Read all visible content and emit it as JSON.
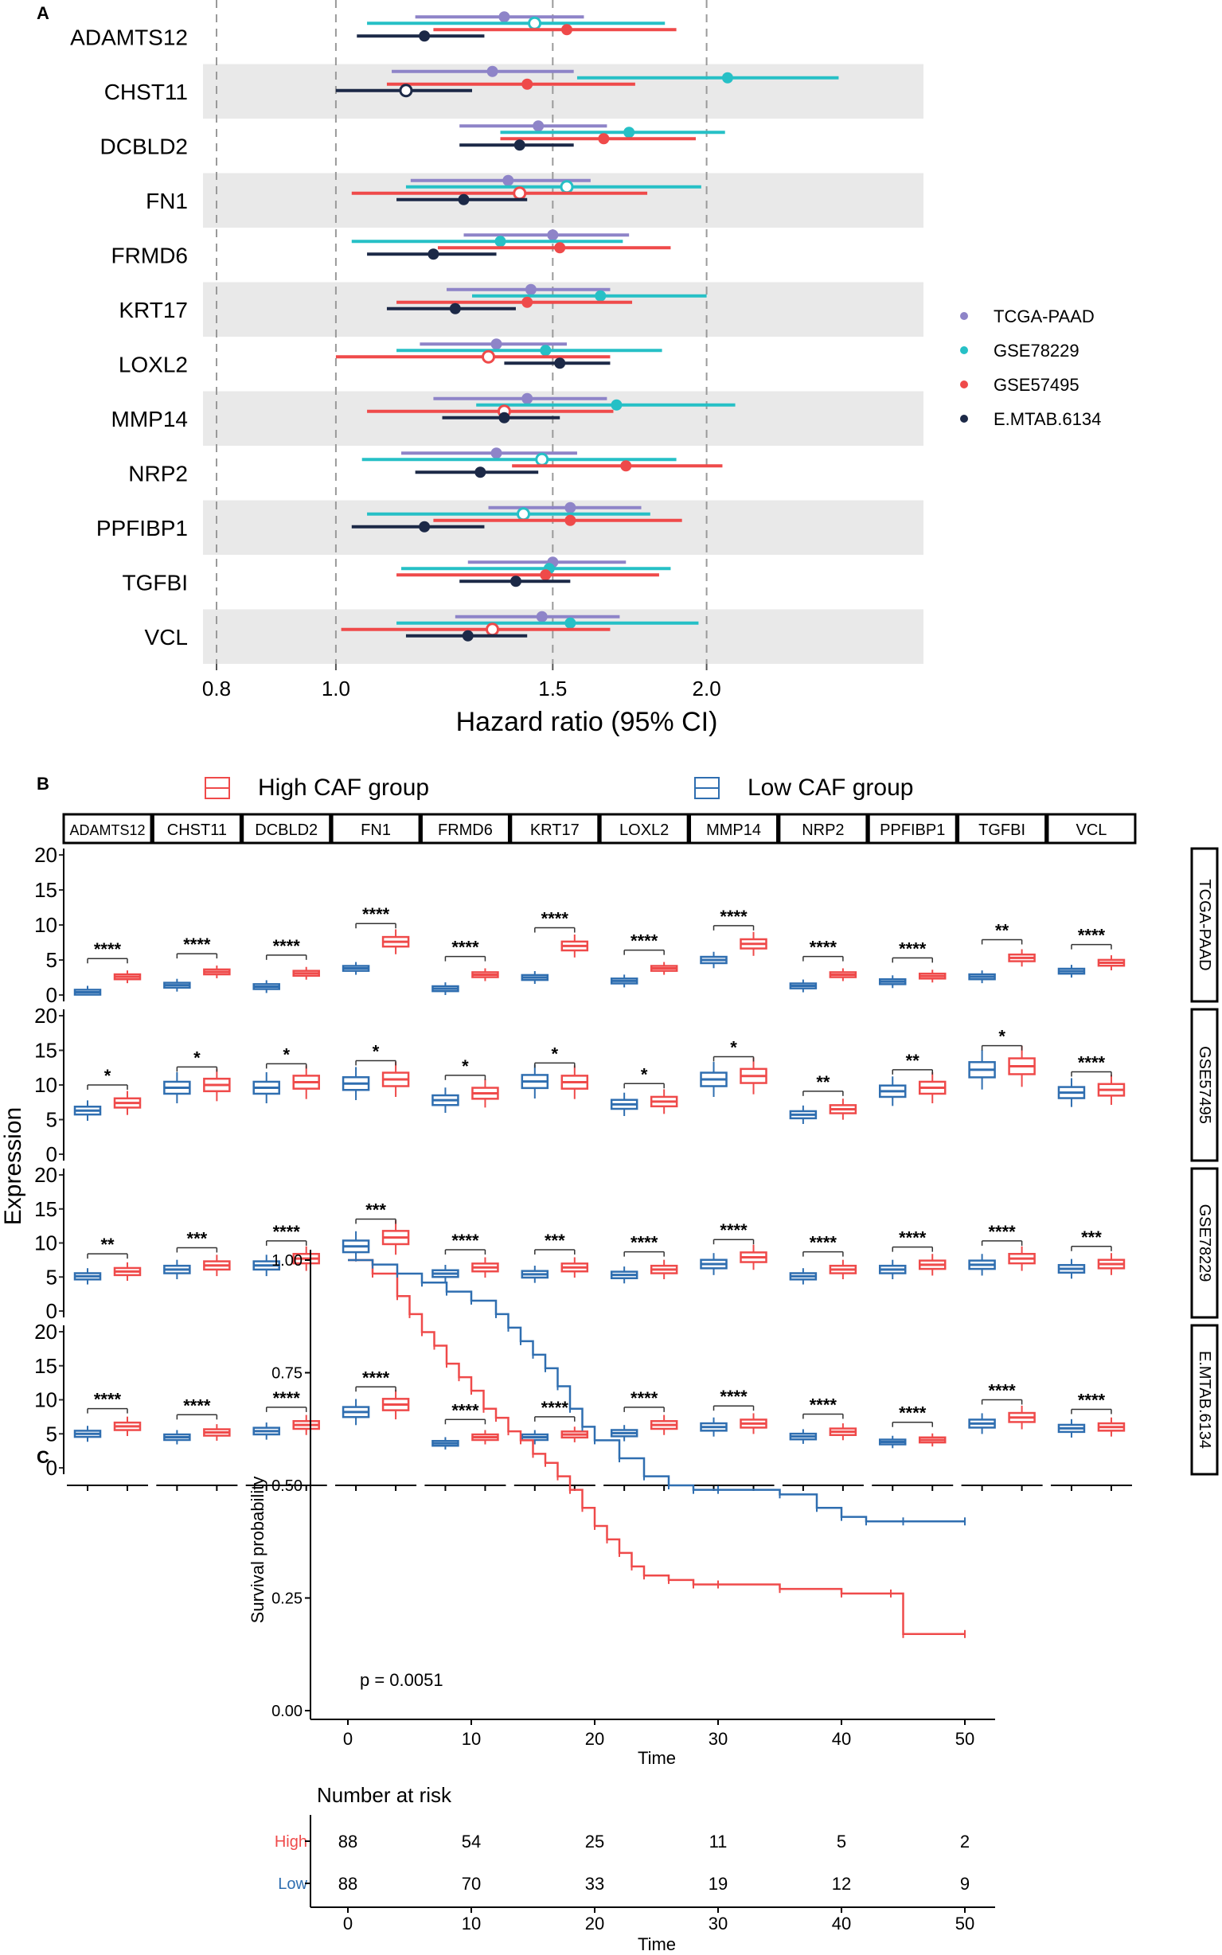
{
  "panels": {
    "a": "A",
    "b": "B",
    "c": "C"
  },
  "chart_data": [
    {
      "type": "forest",
      "panel": "A",
      "xlabel": "Hazard ratio (95% CI)",
      "xticks": [
        "0.8",
        "1.0",
        "1.5",
        "2.0"
      ],
      "xlim_log": [
        0.78,
        3.0
      ],
      "reference_lines": [
        0.8,
        1.0,
        1.5,
        2.0
      ],
      "genes": [
        "ADAMTS12",
        "CHST11",
        "DCBLD2",
        "FN1",
        "FRMD6",
        "KRT17",
        "LOXL2",
        "MMP14",
        "NRP2",
        "PPFIBP1",
        "TGFBI",
        "VCL"
      ],
      "series": [
        {
          "name": "TCGA-PAAD",
          "color": "#8e84c8",
          "hollow": [
            false,
            false,
            false,
            false,
            false,
            false,
            false,
            false,
            false,
            false,
            false,
            false
          ],
          "est": [
            1.37,
            1.34,
            1.46,
            1.38,
            1.5,
            1.44,
            1.35,
            1.43,
            1.35,
            1.55,
            1.5,
            1.47
          ],
          "lo": [
            1.16,
            1.11,
            1.26,
            1.15,
            1.27,
            1.23,
            1.17,
            1.2,
            1.13,
            1.33,
            1.28,
            1.25
          ],
          "hi": [
            1.59,
            1.56,
            1.66,
            1.61,
            1.73,
            1.67,
            1.54,
            1.66,
            1.57,
            1.77,
            1.72,
            1.7
          ]
        },
        {
          "name": "GSE78229",
          "color": "#26c0c6",
          "hollow": [
            true,
            false,
            false,
            true,
            false,
            false,
            false,
            false,
            true,
            true,
            false,
            false
          ],
          "est": [
            1.45,
            2.08,
            1.73,
            1.54,
            1.36,
            1.64,
            1.48,
            1.69,
            1.47,
            1.42,
            1.49,
            1.55
          ],
          "lo": [
            1.06,
            1.57,
            1.36,
            1.14,
            1.03,
            1.29,
            1.12,
            1.3,
            1.05,
            1.06,
            1.13,
            1.12
          ],
          "hi": [
            1.85,
            2.56,
            2.07,
            1.98,
            1.71,
            2.0,
            1.84,
            2.11,
            1.89,
            1.8,
            1.87,
            1.97
          ]
        },
        {
          "name": "GSE57495",
          "color": "#ef4a4a",
          "hollow": [
            false,
            false,
            false,
            true,
            false,
            false,
            true,
            true,
            false,
            false,
            false,
            true
          ],
          "est": [
            1.54,
            1.43,
            1.65,
            1.41,
            1.52,
            1.43,
            1.33,
            1.37,
            1.72,
            1.55,
            1.48,
            1.34
          ],
          "lo": [
            1.2,
            1.1,
            1.36,
            1.03,
            1.21,
            1.12,
            1.0,
            1.06,
            1.39,
            1.2,
            1.12,
            1.01
          ],
          "hi": [
            1.89,
            1.75,
            1.96,
            1.79,
            1.87,
            1.74,
            1.67,
            1.68,
            2.06,
            1.91,
            1.83,
            1.67
          ]
        },
        {
          "name": "E.MTAB.6134",
          "color": "#1c2947",
          "hollow": [
            false,
            true,
            false,
            false,
            false,
            false,
            false,
            false,
            false,
            false,
            false,
            false
          ],
          "est": [
            1.18,
            1.14,
            1.41,
            1.27,
            1.2,
            1.25,
            1.52,
            1.37,
            1.31,
            1.18,
            1.4,
            1.28
          ],
          "lo": [
            1.04,
            1.0,
            1.26,
            1.12,
            1.06,
            1.1,
            1.37,
            1.22,
            1.16,
            1.03,
            1.26,
            1.14
          ],
          "hi": [
            1.32,
            1.29,
            1.56,
            1.43,
            1.35,
            1.4,
            1.67,
            1.52,
            1.46,
            1.32,
            1.55,
            1.43
          ]
        }
      ]
    },
    {
      "type": "boxplot",
      "panel": "B",
      "ylabel": "Expression",
      "ylim": [
        0,
        20
      ],
      "yticks": [
        "0",
        "5",
        "10",
        "15",
        "20"
      ],
      "legend": [
        "High CAF group",
        "Low CAF group"
      ],
      "legend_colors": [
        "#ef4a4a",
        "#2f6eb0"
      ],
      "genes": [
        "ADAMTS12",
        "CHST11",
        "DCBLD2",
        "FN1",
        "FRMD6",
        "KRT17",
        "LOXL2",
        "MMP14",
        "NRP2",
        "PPFIBP1",
        "TGFBI",
        "VCL"
      ],
      "datasets": [
        "TCGA-PAAD",
        "GSE57495",
        "GSE78229",
        "E.MTAB.6134"
      ],
      "low_median": [
        [
          0.4,
          1.4,
          1.2,
          3.8,
          0.9,
          2.5,
          2.0,
          5.0,
          1.3,
          1.9,
          2.6,
          3.4
        ],
        [
          6.3,
          9.6,
          9.6,
          10.2,
          7.8,
          10.5,
          7.2,
          10.8,
          5.7,
          9.1,
          12.2,
          8.9
        ],
        [
          5.1,
          6.1,
          6.7,
          9.5,
          5.5,
          5.4,
          5.3,
          6.9,
          5.1,
          6.1,
          6.8,
          6.2
        ],
        [
          5.0,
          4.5,
          5.4,
          8.2,
          3.6,
          4.5,
          5.1,
          6.0,
          4.6,
          3.8,
          6.5,
          5.8
        ]
      ],
      "high_median": [
        [
          2.6,
          3.3,
          3.1,
          7.6,
          2.9,
          7.0,
          3.8,
          7.3,
          2.9,
          2.7,
          5.3,
          4.6
        ],
        [
          7.4,
          10.0,
          10.4,
          10.8,
          8.8,
          10.4,
          7.6,
          11.3,
          6.5,
          9.6,
          12.7,
          9.3
        ],
        [
          5.8,
          6.7,
          7.7,
          10.8,
          6.4,
          6.4,
          6.1,
          7.9,
          6.1,
          6.8,
          7.7,
          6.9
        ],
        [
          6.1,
          5.2,
          6.3,
          9.3,
          4.5,
          4.9,
          6.3,
          6.5,
          5.3,
          4.1,
          7.4,
          6.0
        ]
      ],
      "significance": [
        [
          "****",
          "****",
          "****",
          "****",
          "****",
          "****",
          "****",
          "****",
          "****",
          "****",
          "**",
          "****"
        ],
        [
          "*",
          "*",
          "*",
          "*",
          "*",
          "*",
          "*",
          "*",
          "**",
          "**",
          "*",
          "****"
        ],
        [
          "**",
          "***",
          "****",
          "***",
          "****",
          "***",
          "****",
          "****",
          "****",
          "****",
          "****",
          "***"
        ],
        [
          "****",
          "****",
          "****",
          "****",
          "****",
          "****",
          "****",
          "****",
          "****",
          "****",
          "****",
          "****"
        ]
      ]
    },
    {
      "type": "line",
      "panel": "C",
      "subtype": "kaplan-meier",
      "xlabel": "Time",
      "ylabel": "Survival probability",
      "xticks": [
        "0",
        "10",
        "20",
        "30",
        "40",
        "50"
      ],
      "yticks": [
        "0.00",
        "0.25",
        "0.50",
        "0.75",
        "1.00"
      ],
      "xlim": [
        0,
        50
      ],
      "ylim": [
        0,
        1
      ],
      "pvalue": "p = 0.0051",
      "series": [
        {
          "name": "High",
          "color": "#ef4a4a",
          "x": [
            0,
            2,
            4,
            5,
            6,
            7,
            8,
            9,
            10,
            11,
            12,
            13,
            14,
            15,
            16,
            17,
            18,
            19,
            20,
            21,
            22,
            23,
            24,
            26,
            28,
            30,
            35,
            40,
            44,
            45,
            50
          ],
          "y": [
            1.0,
            0.97,
            0.92,
            0.88,
            0.84,
            0.81,
            0.77,
            0.74,
            0.71,
            0.67,
            0.65,
            0.62,
            0.6,
            0.57,
            0.55,
            0.52,
            0.49,
            0.45,
            0.41,
            0.38,
            0.35,
            0.32,
            0.3,
            0.29,
            0.28,
            0.28,
            0.27,
            0.26,
            0.26,
            0.17,
            0.17
          ]
        },
        {
          "name": "Low",
          "color": "#2f6eb0",
          "x": [
            0,
            2,
            4,
            6,
            8,
            10,
            12,
            13,
            14,
            15,
            16,
            17,
            18,
            19,
            20,
            22,
            24,
            26,
            28,
            30,
            35,
            38,
            40,
            42,
            45,
            50
          ],
          "y": [
            1.0,
            0.99,
            0.97,
            0.95,
            0.93,
            0.91,
            0.88,
            0.85,
            0.82,
            0.79,
            0.76,
            0.72,
            0.67,
            0.63,
            0.6,
            0.56,
            0.52,
            0.5,
            0.49,
            0.49,
            0.48,
            0.45,
            0.43,
            0.42,
            0.42,
            0.42
          ]
        }
      ]
    },
    {
      "type": "table",
      "panel": "C",
      "title": "Number at risk",
      "xlabel": "Time",
      "xticks": [
        "0",
        "10",
        "20",
        "30",
        "40",
        "50"
      ],
      "rows": [
        {
          "label": "High",
          "color": "#ef4a4a",
          "values": [
            "88",
            "54",
            "25",
            "11",
            "5",
            "2"
          ]
        },
        {
          "label": "Low",
          "color": "#2f6eb0",
          "values": [
            "88",
            "70",
            "33",
            "19",
            "12",
            "9"
          ]
        }
      ]
    }
  ]
}
